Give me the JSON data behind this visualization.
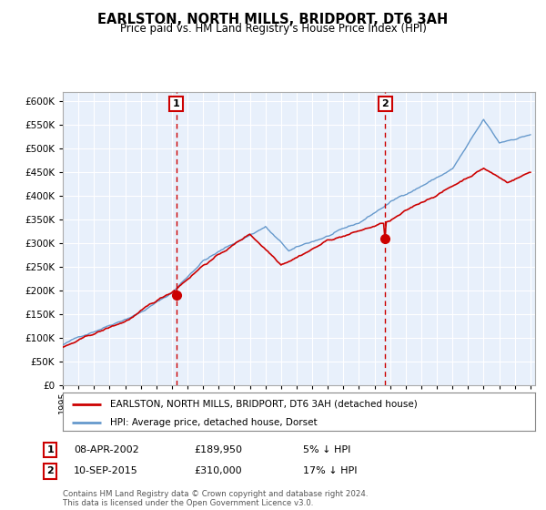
{
  "title": "EARLSTON, NORTH MILLS, BRIDPORT, DT6 3AH",
  "subtitle": "Price paid vs. HM Land Registry's House Price Index (HPI)",
  "legend_line1": "EARLSTON, NORTH MILLS, BRIDPORT, DT6 3AH (detached house)",
  "legend_line2": "HPI: Average price, detached house, Dorset",
  "annotation1": {
    "label": "1",
    "date_str": "08-APR-2002",
    "price_str": "£189,950",
    "pct_str": "5% ↓ HPI",
    "year": 2002.27,
    "value": 189950
  },
  "annotation2": {
    "label": "2",
    "date_str": "10-SEP-2015",
    "price_str": "£310,000",
    "pct_str": "17% ↓ HPI",
    "year": 2015.69,
    "value": 310000
  },
  "footer": "Contains HM Land Registry data © Crown copyright and database right 2024.\nThis data is licensed under the Open Government Licence v3.0.",
  "plot_bg_color": "#e8f0fb",
  "red_line_color": "#cc0000",
  "blue_line_color": "#6699cc",
  "grid_color": "#ffffff",
  "annotation_box_color": "#cc0000",
  "dashed_line_color": "#cc0000",
  "yticks": [
    0,
    50000,
    100000,
    150000,
    200000,
    250000,
    300000,
    350000,
    400000,
    450000,
    500000,
    550000,
    600000
  ],
  "year_start": 1995,
  "year_end": 2025
}
